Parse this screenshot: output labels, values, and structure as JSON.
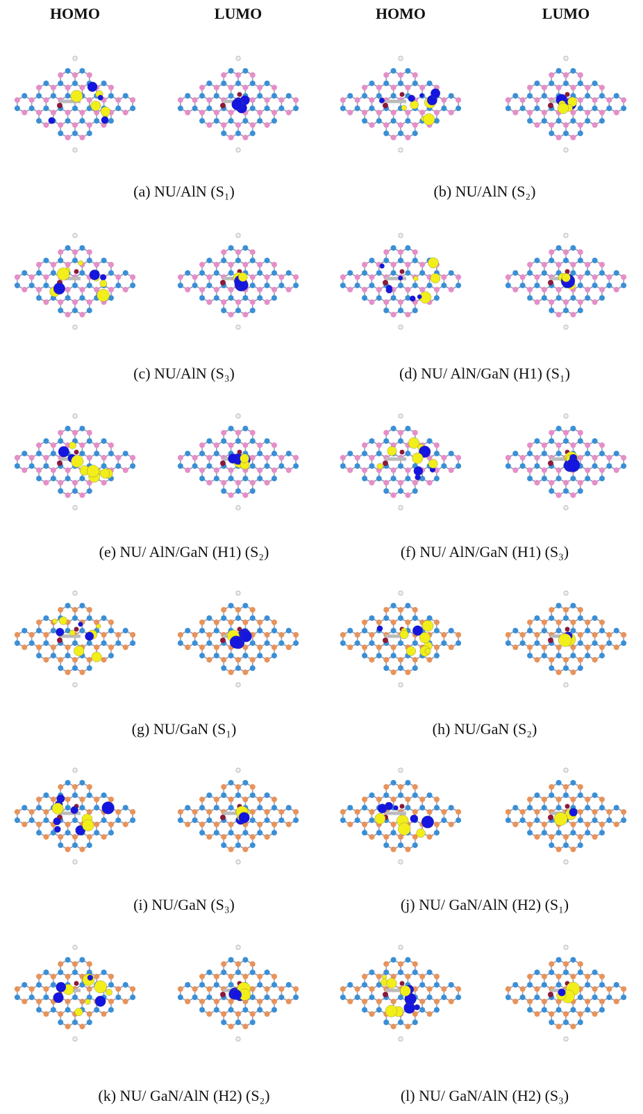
{
  "header": {
    "columns": [
      "HOMO",
      "LUMO",
      "HOMO",
      "LUMO"
    ]
  },
  "panels": [
    {
      "caption": "(a) NU/AlN (S₁)"
    },
    {
      "caption": "(b) NU/AlN (S₂)"
    },
    {
      "caption": "(c) NU/AlN (S₃)"
    },
    {
      "caption": "(d) NU/ AlN/GaN (H1) (S₁)"
    },
    {
      "caption": "(e) NU/ AlN/GaN (H1) (S₂)"
    },
    {
      "caption": "(f) NU/ AlN/GaN (H1) (S₃)"
    },
    {
      "caption": "(g) NU/GaN (S₁)"
    },
    {
      "caption": "(h) NU/GaN (S₂)"
    },
    {
      "caption": "(i) NU/GaN (S₃)"
    },
    {
      "caption": "(j) NU/ GaN/AlN (H2) (S₁)"
    },
    {
      "caption": "(k) NU/ GaN/AlN (H2) (S₂)"
    },
    {
      "caption": "(l) NU/ GaN/AlN (H2) (S₃)"
    }
  ]
}
